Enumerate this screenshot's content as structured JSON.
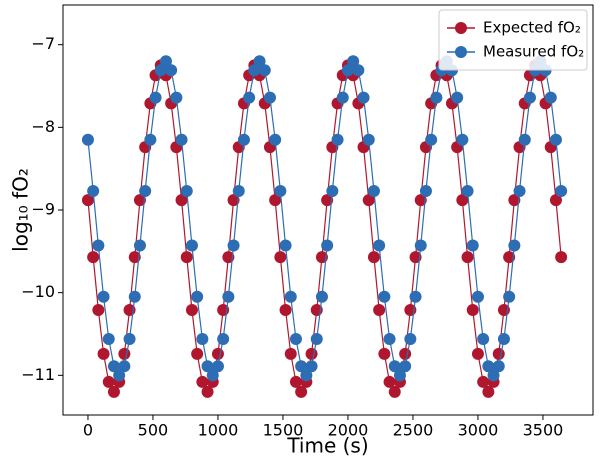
{
  "chart_data": {
    "type": "line",
    "xlabel": "Time (s)",
    "ylabel": "log₁₀  fO₂",
    "x": [
      0,
      40,
      80,
      120,
      160,
      200,
      240,
      280,
      320,
      360,
      400,
      440,
      480,
      520,
      560,
      600,
      640,
      680,
      720,
      760,
      800,
      840,
      880,
      920,
      960,
      1000,
      1040,
      1080,
      1120,
      1160,
      1200,
      1240,
      1280,
      1320,
      1360,
      1400,
      1440,
      1480,
      1520,
      1560,
      1600,
      1640,
      1680,
      1720,
      1760,
      1800,
      1840,
      1880,
      1920,
      1960,
      2000,
      2040,
      2080,
      2120,
      2160,
      2200,
      2240,
      2280,
      2320,
      2360,
      2400,
      2440,
      2480,
      2520,
      2560,
      2600,
      2640,
      2680,
      2720,
      2760,
      2800,
      2840,
      2880,
      2920,
      2960,
      3000,
      3040,
      3080,
      3120,
      3160,
      3200,
      3240,
      3280,
      3320,
      3360,
      3400,
      3440,
      3480,
      3520,
      3560,
      3600,
      3640
    ],
    "series": [
      {
        "name": "Expected fO₂",
        "color": "#b0172f",
        "values": [
          -8.88,
          -9.57,
          -10.21,
          -10.74,
          -11.08,
          -11.2,
          -11.08,
          -10.74,
          -10.21,
          -9.57,
          -8.88,
          -8.24,
          -7.71,
          -7.37,
          -7.25,
          -7.37,
          -7.71,
          -8.24,
          -8.88,
          -9.57,
          -10.21,
          -10.74,
          -11.08,
          -11.2,
          -11.08,
          -10.74,
          -10.21,
          -9.57,
          -8.88,
          -8.24,
          -7.71,
          -7.37,
          -7.25,
          -7.37,
          -7.71,
          -8.24,
          -8.88,
          -9.57,
          -10.21,
          -10.74,
          -11.08,
          -11.2,
          -11.08,
          -10.74,
          -10.21,
          -9.57,
          -8.88,
          -8.24,
          -7.71,
          -7.37,
          -7.25,
          -7.37,
          -7.71,
          -8.24,
          -8.88,
          -9.57,
          -10.21,
          -10.74,
          -11.08,
          -11.2,
          -11.08,
          -10.74,
          -10.21,
          -9.57,
          -8.88,
          -8.24,
          -7.71,
          -7.37,
          -7.25,
          -7.37,
          -7.71,
          -8.24,
          -8.88,
          -9.57,
          -10.21,
          -10.74,
          -11.08,
          -11.2,
          -11.08,
          -10.74,
          -10.21,
          -9.57,
          -8.88,
          -8.24,
          -7.71,
          -7.37,
          -7.25,
          -7.37,
          -7.71,
          -8.24,
          -8.88,
          -9.57
        ]
      },
      {
        "name": "Measured fO₂",
        "color": "#2c6db3",
        "values": [
          -8.15,
          -8.77,
          -9.43,
          -10.05,
          -10.56,
          -10.89,
          -11.0,
          -10.89,
          -10.56,
          -10.05,
          -9.43,
          -8.77,
          -8.15,
          -7.64,
          -7.31,
          -7.2,
          -7.31,
          -7.64,
          -8.15,
          -8.77,
          -9.43,
          -10.05,
          -10.56,
          -10.89,
          -11.0,
          -10.89,
          -10.56,
          -10.05,
          -9.43,
          -8.77,
          -8.15,
          -7.64,
          -7.31,
          -7.2,
          -7.31,
          -7.64,
          -8.15,
          -8.77,
          -9.43,
          -10.05,
          -10.56,
          -10.89,
          -11.0,
          -10.89,
          -10.56,
          -10.05,
          -9.43,
          -8.77,
          -8.15,
          -7.64,
          -7.31,
          -7.2,
          -7.31,
          -7.64,
          -8.15,
          -8.77,
          -9.43,
          -10.05,
          -10.56,
          -10.89,
          -11.0,
          -10.89,
          -10.56,
          -10.05,
          -9.43,
          -8.77,
          -8.15,
          -7.64,
          -7.31,
          -7.2,
          -7.31,
          -7.64,
          -8.15,
          -8.77,
          -9.43,
          -10.05,
          -10.56,
          -10.89,
          -11.0,
          -10.89,
          -10.56,
          -10.05,
          -9.43,
          -8.77,
          -8.15,
          -7.64,
          -7.31,
          -7.2,
          -7.31,
          -7.64,
          -8.15,
          -8.77
        ]
      }
    ],
    "xlim": [
      -192,
      3885
    ],
    "ylim": [
      -11.48,
      -6.52
    ],
    "xticks": [
      0,
      500,
      1000,
      1500,
      2000,
      2500,
      3000,
      3500
    ],
    "yticks": [
      {
        "value": -11,
        "label": "−11"
      },
      {
        "value": -10,
        "label": "−10"
      },
      {
        "value": -9,
        "label": "−9"
      },
      {
        "value": -8,
        "label": "−8"
      },
      {
        "value": -7,
        "label": "−7"
      }
    ],
    "legend": "upper right",
    "grid": false
  }
}
